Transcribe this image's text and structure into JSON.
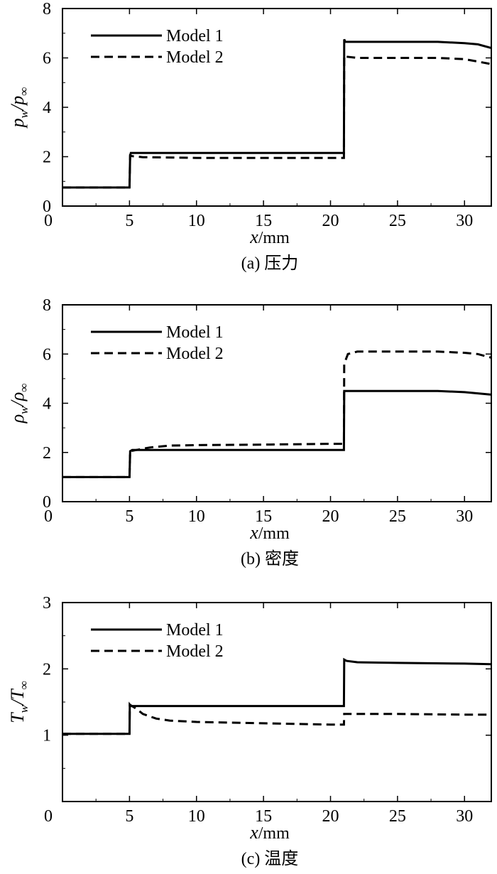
{
  "chart_data": [
    {
      "type": "line",
      "caption": "(a) 压力",
      "ylabel_main": "p",
      "ylabel_sub": "w",
      "ylabel_main2": "p",
      "ylabel_sub2": "∞",
      "xlabel_main": "x",
      "xlabel_unit": "/mm",
      "xlim": [
        0,
        32
      ],
      "ylim": [
        0,
        8
      ],
      "xticks": [
        0,
        5,
        10,
        15,
        20,
        25,
        30
      ],
      "yticks": [
        0,
        2,
        4,
        6,
        8
      ],
      "legend": "top-left",
      "series": [
        {
          "name": "Model 1",
          "style": "solid",
          "x": [
            0,
            5,
            5.05,
            5.1,
            10,
            20,
            21,
            21.02,
            21.1,
            25,
            28,
            30,
            31,
            32
          ],
          "y": [
            0.75,
            0.75,
            2.05,
            2.15,
            2.15,
            2.15,
            2.15,
            6.75,
            6.65,
            6.65,
            6.65,
            6.6,
            6.55,
            6.4
          ]
        },
        {
          "name": "Model 2",
          "style": "dashed",
          "x": [
            0,
            5,
            5.05,
            5.2,
            6,
            10,
            20,
            21,
            21.02,
            21.2,
            22,
            25,
            28,
            30,
            31,
            32
          ],
          "y": [
            0.75,
            0.75,
            2.05,
            2.02,
            1.98,
            1.95,
            1.95,
            1.95,
            6.1,
            6.05,
            6.0,
            6.0,
            6.0,
            5.95,
            5.85,
            5.75
          ]
        }
      ]
    },
    {
      "type": "line",
      "caption": "(b) 密度",
      "ylabel_main": "ρ",
      "ylabel_sub": "w",
      "ylabel_main2": "ρ",
      "ylabel_sub2": "∞",
      "xlabel_main": "x",
      "xlabel_unit": "/mm",
      "xlim": [
        0,
        32
      ],
      "ylim": [
        0,
        8
      ],
      "xticks": [
        0,
        5,
        10,
        15,
        20,
        25,
        30
      ],
      "yticks": [
        0,
        2,
        4,
        6,
        8
      ],
      "legend": "top-left",
      "series": [
        {
          "name": "Model 1",
          "style": "solid",
          "x": [
            0,
            5,
            5.05,
            5.2,
            10,
            20,
            21,
            21.02,
            21.3,
            25,
            28,
            30,
            32
          ],
          "y": [
            1.0,
            1.0,
            2.05,
            2.1,
            2.1,
            2.1,
            2.1,
            4.5,
            4.5,
            4.5,
            4.5,
            4.45,
            4.35
          ]
        },
        {
          "name": "Model 2",
          "style": "dashed",
          "x": [
            0,
            5,
            5.05,
            5.5,
            6.5,
            8,
            10,
            15,
            20,
            21,
            21.02,
            21.3,
            22,
            25,
            28,
            30,
            31,
            32
          ],
          "y": [
            1.0,
            1.0,
            2.05,
            2.1,
            2.2,
            2.28,
            2.3,
            2.32,
            2.35,
            2.35,
            5.6,
            6.0,
            6.1,
            6.1,
            6.1,
            6.05,
            6.0,
            5.85
          ]
        }
      ]
    },
    {
      "type": "line",
      "caption": "(c) 温度",
      "ylabel_main": "T",
      "ylabel_sub": "w",
      "ylabel_main2": "T",
      "ylabel_sub2": "∞",
      "xlabel_main": "x",
      "xlabel_unit": "/mm",
      "xlim": [
        0,
        32
      ],
      "ylim": [
        0,
        3
      ],
      "xticks": [
        0,
        5,
        10,
        15,
        20,
        25,
        30
      ],
      "yticks": [
        1,
        2,
        3
      ],
      "legend": "top-left",
      "series": [
        {
          "name": "Model 1",
          "style": "solid",
          "x": [
            0,
            5,
            5.02,
            5.1,
            6,
            10,
            15,
            20,
            21,
            21.02,
            21.2,
            22,
            25,
            30,
            32
          ],
          "y": [
            1.02,
            1.02,
            1.46,
            1.44,
            1.44,
            1.44,
            1.44,
            1.44,
            1.44,
            2.14,
            2.12,
            2.1,
            2.09,
            2.08,
            2.07
          ]
        },
        {
          "name": "Model 2",
          "style": "dashed",
          "x": [
            0,
            5,
            5.02,
            5.5,
            6,
            7,
            8,
            10,
            15,
            20,
            21,
            21.02,
            21.3,
            22,
            25,
            30,
            32
          ],
          "y": [
            1.02,
            1.02,
            1.46,
            1.4,
            1.32,
            1.25,
            1.22,
            1.2,
            1.18,
            1.16,
            1.16,
            1.32,
            1.32,
            1.32,
            1.32,
            1.31,
            1.31
          ]
        }
      ]
    }
  ]
}
